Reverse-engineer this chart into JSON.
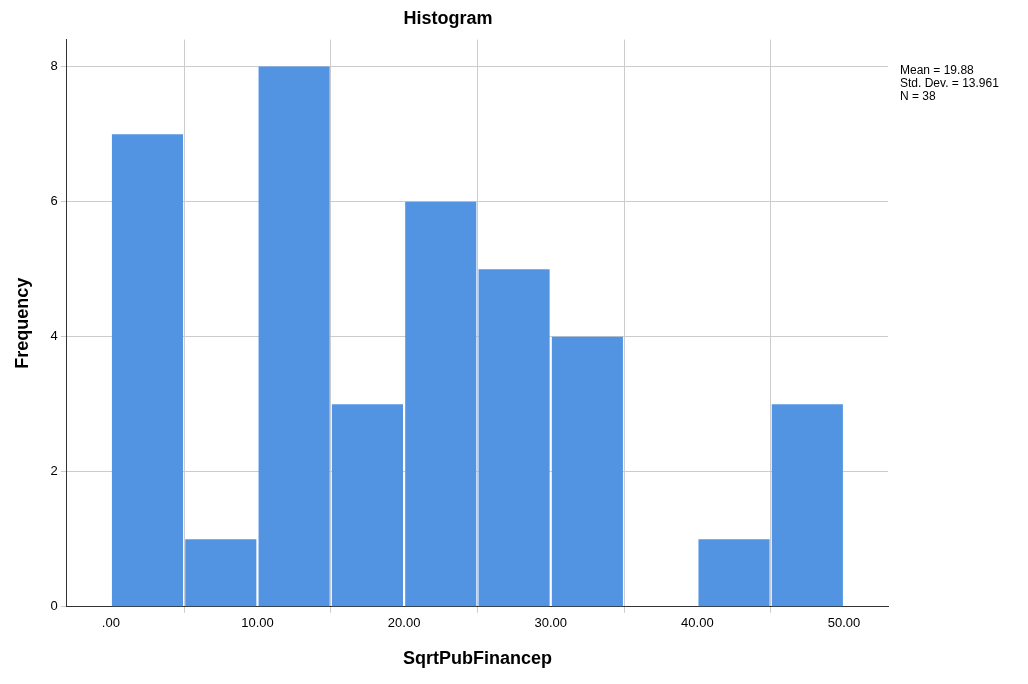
{
  "chart_data": {
    "type": "histogram",
    "title": "Histogram",
    "xlabel": "SqrtPubFinancep",
    "ylabel": "Frequency",
    "bins": [
      0,
      5,
      10,
      15,
      20,
      25,
      30,
      35,
      40,
      45,
      50
    ],
    "values": [
      7,
      1,
      8,
      3,
      6,
      5,
      4,
      0,
      1,
      3
    ],
    "color": "#5294e2",
    "xlim": [
      -3,
      53
    ],
    "xticks": [
      {
        "value": 0,
        "label": ".00"
      },
      {
        "value": 10,
        "label": "10.00"
      },
      {
        "value": 20,
        "label": "20.00"
      },
      {
        "value": 30,
        "label": "30.00"
      },
      {
        "value": 40,
        "label": "40.00"
      },
      {
        "value": 50,
        "label": "50.00"
      }
    ],
    "ylim": [
      0,
      8.4
    ],
    "yticks": [
      0,
      2,
      4,
      6,
      8
    ],
    "grid": true,
    "legend": false,
    "annotations": [
      "Mean = 19.88",
      "Std. Dev. = 13.961",
      "N = 38"
    ]
  }
}
